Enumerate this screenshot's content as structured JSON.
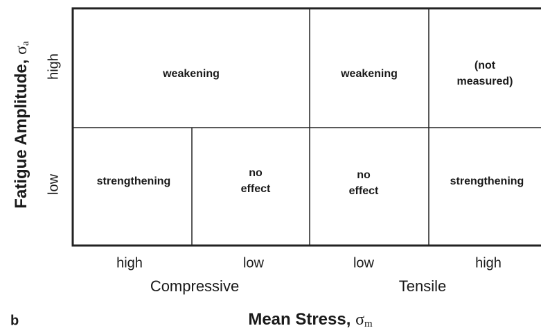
{
  "panel_label": "b",
  "y_axis": {
    "label": "Fatigue Amplitude, ",
    "symbol": "σ",
    "subscript": "a",
    "levels": [
      "high",
      "low"
    ]
  },
  "x_axis": {
    "label": "Mean Stress, ",
    "symbol": "σ",
    "subscript": "m",
    "levels": [
      "high",
      "low",
      "low",
      "high"
    ],
    "groups": [
      "Compressive",
      "Tensile"
    ]
  },
  "cells": [
    {
      "lines": [
        "weakening"
      ]
    },
    {
      "lines": [
        "weakening"
      ]
    },
    {
      "lines": [
        "(not",
        "measured)"
      ]
    },
    {
      "lines": [
        "strengthening"
      ]
    },
    {
      "lines": [
        "no",
        "effect"
      ]
    },
    {
      "lines": [
        "no",
        "effect"
      ]
    },
    {
      "lines": [
        "strengthening"
      ]
    }
  ]
}
